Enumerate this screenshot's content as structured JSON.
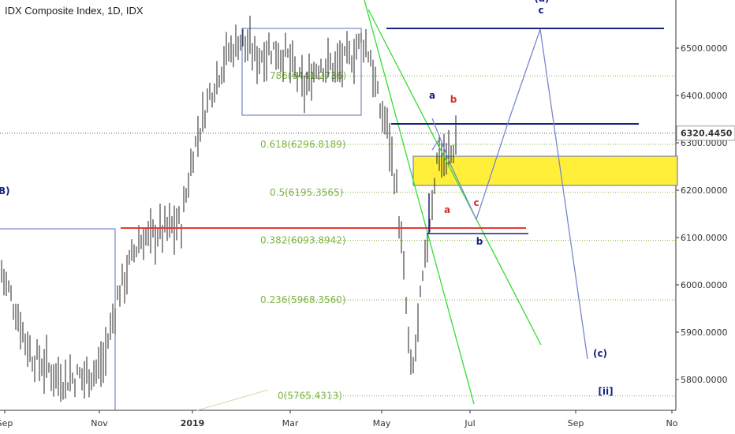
{
  "chart_data": {
    "type": "candlestick",
    "title": "IDX Composite Index, 1D, IDX",
    "x_tick_labels": [
      "Sep",
      "Nov",
      "2019",
      "Mar",
      "May",
      "Jul",
      "Sep",
      "No"
    ],
    "y_ticks": [
      "5800.0000",
      "5900.0000",
      "6000.0000",
      "6100.0000",
      "6200.0000",
      "6300.0000",
      "6400.0000",
      "6500.0000"
    ],
    "last_price": "6320.4450",
    "ylim": [
      5730,
      6610
    ],
    "fibonacci_levels": [
      {
        "ratio": "0.786",
        "value": 6441.2736,
        "label": "786(6441.2736)"
      },
      {
        "ratio": "0.618",
        "value": 6296.8189,
        "label": "0.618(6296.8189)"
      },
      {
        "ratio": "0.5",
        "value": 6195.3565,
        "label": "0.5(6195.3565)"
      },
      {
        "ratio": "0.382",
        "value": 6093.8942,
        "label": "0.382(6093.8942)"
      },
      {
        "ratio": "0.236",
        "value": 5968.356,
        "label": "0.236(5968.3560)"
      },
      {
        "ratio": "0",
        "value": 5765.4313,
        "label": "0(5765.4313)"
      }
    ],
    "wave_labels": [
      {
        "text": "(a)",
        "color": "#1a237e"
      },
      {
        "text": "c",
        "color": "#1a237e"
      },
      {
        "text": "a",
        "color": "#1a237e"
      },
      {
        "text": "b",
        "color": "#d32f2f"
      },
      {
        "text": "a",
        "color": "#d32f2f"
      },
      {
        "text": "c",
        "color": "#d32f2f"
      },
      {
        "text": "b",
        "color": "#1a237e"
      },
      {
        "text": "(c)",
        "color": "#1a237e"
      },
      {
        "text": "[ii]",
        "color": "#1a237e"
      },
      {
        "text": "B)",
        "color": "#1a237e"
      }
    ],
    "colors": {
      "candle": "#222222",
      "fib": "#7cb342",
      "support_line": "#e53935",
      "resistance_line": "#1a237e",
      "zone_fill": "#ffef3a",
      "trendline": "#33dd33",
      "projection": "#7986cb",
      "box": "#5c6bc0"
    }
  }
}
